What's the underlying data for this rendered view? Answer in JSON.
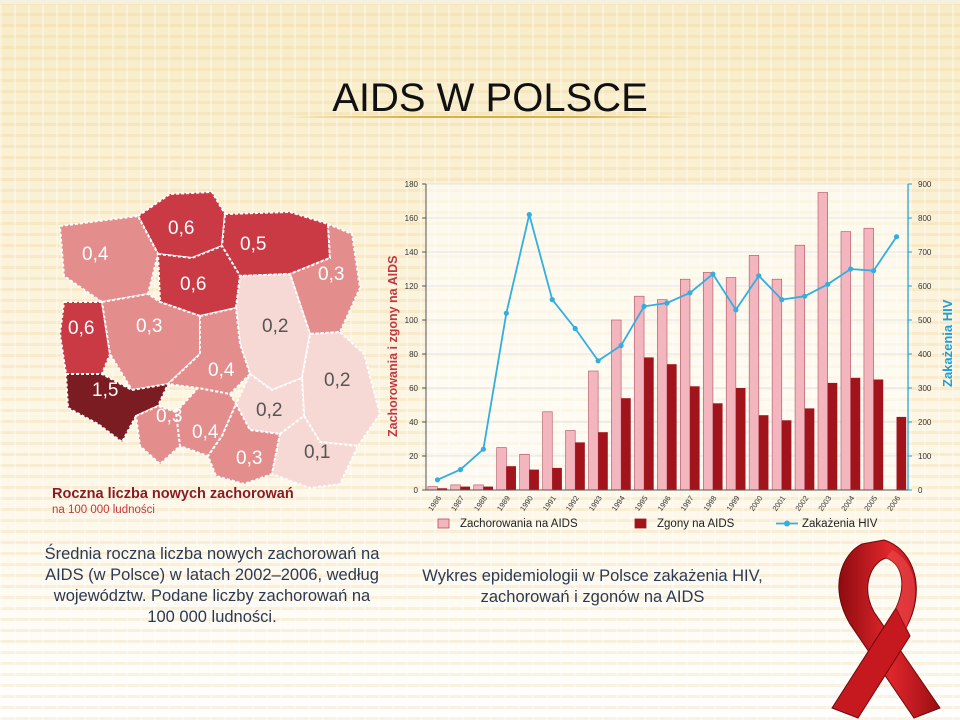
{
  "slide": {
    "title": "AIDS W POLSCE",
    "caption_left": "Średnia roczna liczba nowych zachorowań na AIDS (w Polsce) w latach 2002–2006, według województw. Podane liczby zachorowań na 100 000 ludności.",
    "caption_right": "Wykres epidemiologii w Polsce zakażenia HIV, zachorowań i zgonów na AIDS"
  },
  "map": {
    "legend_title": "Roczna liczba nowych zachorowań",
    "legend_subtitle": "na 100 000 ludności",
    "regions": [
      {
        "name": "pomorskie",
        "value": "0,6",
        "color": "#c93a45"
      },
      {
        "name": "warmińsko-mazurskie",
        "value": "0,5",
        "color": "#c93a45"
      },
      {
        "name": "zachodniopomorskie",
        "value": "0,4",
        "color": "#e48d8d"
      },
      {
        "name": "kujawsko-pomorskie",
        "value": "0,6",
        "color": "#c93a45"
      },
      {
        "name": "podlaskie",
        "value": "0,3",
        "color": "#e48d8d"
      },
      {
        "name": "lubuskie",
        "value": "0,6",
        "color": "#c93a45"
      },
      {
        "name": "wielkopolskie",
        "value": "0,3",
        "color": "#e48d8d"
      },
      {
        "name": "mazowieckie",
        "value": "0,2",
        "color": "#f6d9d4"
      },
      {
        "name": "łódzkie",
        "value": "0,4",
        "color": "#e48d8d"
      },
      {
        "name": "dolnośląskie",
        "value": "1,5",
        "color": "#7b1c22"
      },
      {
        "name": "lubelskie",
        "value": "0,2",
        "color": "#f6d9d4"
      },
      {
        "name": "opolskie",
        "value": "0,3",
        "color": "#e48d8d"
      },
      {
        "name": "świętokrzyskie",
        "value": "0,2",
        "color": "#f6d9d4"
      },
      {
        "name": "śląskie",
        "value": "0,4",
        "color": "#e48d8d"
      },
      {
        "name": "małopolskie",
        "value": "0,3",
        "color": "#e48d8d"
      },
      {
        "name": "podkarpackie",
        "value": "0,1",
        "color": "#f6d9d4"
      }
    ]
  },
  "chart_data": {
    "type": "bar",
    "categories": [
      "1986",
      "1987",
      "1988",
      "1989",
      "1990",
      "1991",
      "1992",
      "1993",
      "1994",
      "1995",
      "1996",
      "1997",
      "1998",
      "1999",
      "2000",
      "2001",
      "2002",
      "2003",
      "2004",
      "2005",
      "2006"
    ],
    "series": [
      {
        "name": "Zachorowania na AIDS",
        "type": "bar",
        "axis": "left",
        "color": "#f4b6be",
        "values": [
          2,
          3,
          3,
          25,
          21,
          46,
          35,
          70,
          100,
          114,
          112,
          124,
          128,
          125,
          138,
          124,
          144,
          175,
          152,
          154,
          0
        ]
      },
      {
        "name": "Zgony na AIDS",
        "type": "bar",
        "axis": "left",
        "color": "#a1141c",
        "values": [
          1,
          2,
          2,
          14,
          12,
          13,
          28,
          34,
          54,
          78,
          74,
          61,
          51,
          60,
          44,
          41,
          48,
          63,
          66,
          65,
          43
        ]
      },
      {
        "name": "Zakażenia HIV",
        "type": "line",
        "axis": "right",
        "color": "#33aee0",
        "values": [
          30,
          60,
          120,
          520,
          810,
          560,
          475,
          380,
          425,
          540,
          550,
          580,
          635,
          530,
          630,
          560,
          570,
          605,
          650,
          645,
          745
        ]
      }
    ],
    "ylabel": "Zachorowania i zgony na AIDS",
    "y2label": "Zakażenia HIV",
    "ylim": [
      0,
      180
    ],
    "y2lim": [
      0,
      900
    ],
    "yticks": [
      "0",
      "20",
      "40",
      "60",
      "80",
      "100",
      "120",
      "140",
      "160",
      "180"
    ],
    "y2ticks": [
      "0",
      "100",
      "200",
      "300",
      "400",
      "500",
      "600",
      "700",
      "800",
      "900"
    ],
    "legend_position": "bottom"
  }
}
